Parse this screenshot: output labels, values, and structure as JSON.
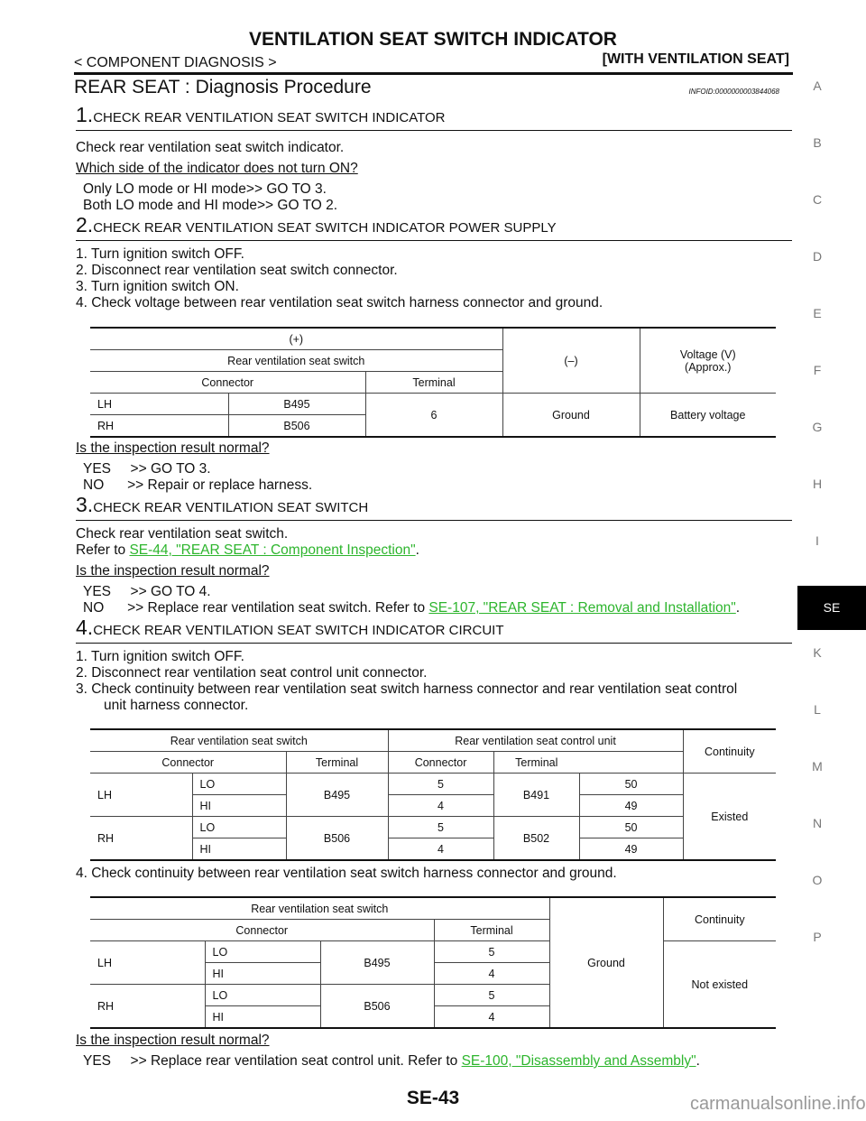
{
  "header": {
    "title": "VENTILATION SEAT SWITCH INDICATOR",
    "category": "< COMPONENT DIAGNOSIS >",
    "variant": "[WITH VENTILATION SEAT]"
  },
  "section": {
    "title": "REAR SEAT : Diagnosis Procedure",
    "infoid": "INFOID:0000000003844068"
  },
  "steps": [
    {
      "num": "1.",
      "title": "CHECK REAR VENTILATION SEAT SWITCH INDICATOR",
      "text": "Check rear ventilation seat switch indicator.",
      "question": "Which side of the indicator does not turn ON?",
      "answers": [
        "Only LO mode or HI mode>> GO TO 3.",
        "Both LO mode and HI mode>> GO TO 2."
      ]
    },
    {
      "num": "2.",
      "title": "CHECK REAR VENTILATION SEAT SWITCH INDICATOR POWER SUPPLY",
      "items": [
        "1.  Turn ignition switch OFF.",
        "2.  Disconnect rear ventilation seat switch connector.",
        "3.  Turn ignition switch ON.",
        "4.  Check voltage between rear ventilation seat switch harness connector and ground."
      ],
      "question": "Is the inspection result normal?",
      "answers": [
        "YES     >> GO TO 3.",
        "NO      >> Repair or replace harness."
      ]
    },
    {
      "num": "3.",
      "title": "CHECK REAR VENTILATION SEAT SWITCH",
      "text": "Check rear ventilation seat switch.",
      "refer_prefix": "Refer to ",
      "refer_link": "SE-44, \"REAR SEAT : Component Inspection\"",
      "question": "Is the inspection result normal?",
      "yes": "YES     >> GO TO 4.",
      "no_prefix": "NO      >> Replace rear ventilation seat switch. Refer to ",
      "no_link": "SE-107, \"REAR SEAT : Removal and Installation\""
    },
    {
      "num": "4.",
      "title": "CHECK REAR VENTILATION SEAT SWITCH INDICATOR CIRCUIT",
      "items": [
        "1.  Turn ignition switch OFF.",
        "2.  Disconnect rear ventilation seat control unit connector.",
        "3.  Check continuity between rear ventilation seat switch harness connector and rear ventilation seat control",
        "unit harness connector.",
        "4.  Check continuity between rear ventilation seat switch harness connector and ground."
      ],
      "question": "Is the inspection result normal?",
      "yes_prefix": "YES     >> Replace rear ventilation seat control unit. Refer to ",
      "yes_link": "SE-100, \"Disassembly and Assembly\""
    }
  ],
  "table1": {
    "plus": "(+)",
    "switch": "Rear ventilation seat switch",
    "connector": "Connector",
    "terminal": "Terminal",
    "minus": "(–)",
    "voltage": "Voltage (V)\n(Approx.)",
    "rows": [
      [
        "LH",
        "B495"
      ],
      [
        "RH",
        "B506"
      ]
    ],
    "term": "6",
    "ground": "Ground",
    "value": "Battery voltage"
  },
  "table2": {
    "switch": "Rear ventilation seat switch",
    "unit": "Rear ventilation seat control unit",
    "continuity": "Continuity",
    "connector": "Connector",
    "terminal": "Terminal",
    "lh": "LH",
    "rh": "RH",
    "lo": "LO",
    "hi": "HI",
    "c1": "B495",
    "c2": "B506",
    "u1": "B491",
    "u2": "B502",
    "t5": "5",
    "t4": "4",
    "t50": "50",
    "t49": "49",
    "result": "Existed"
  },
  "table3": {
    "switch": "Rear ventilation seat switch",
    "connector": "Connector",
    "terminal": "Terminal",
    "ground": "Ground",
    "continuity": "Continuity",
    "lh": "LH",
    "rh": "RH",
    "lo": "LO",
    "hi": "HI",
    "c1": "B495",
    "c2": "B506",
    "t5": "5",
    "t4": "4",
    "result": "Not existed"
  },
  "side_tabs": [
    "A",
    "B",
    "C",
    "D",
    "E",
    "F",
    "G",
    "H",
    "I",
    "SE",
    "K",
    "L",
    "M",
    "N",
    "O",
    "P"
  ],
  "active_tab": "SE",
  "footer": {
    "page": "SE-43",
    "watermark": "carmanualsonline.info"
  },
  "colors": {
    "link": "#2db52d",
    "active_tab_bg": "#000000"
  }
}
